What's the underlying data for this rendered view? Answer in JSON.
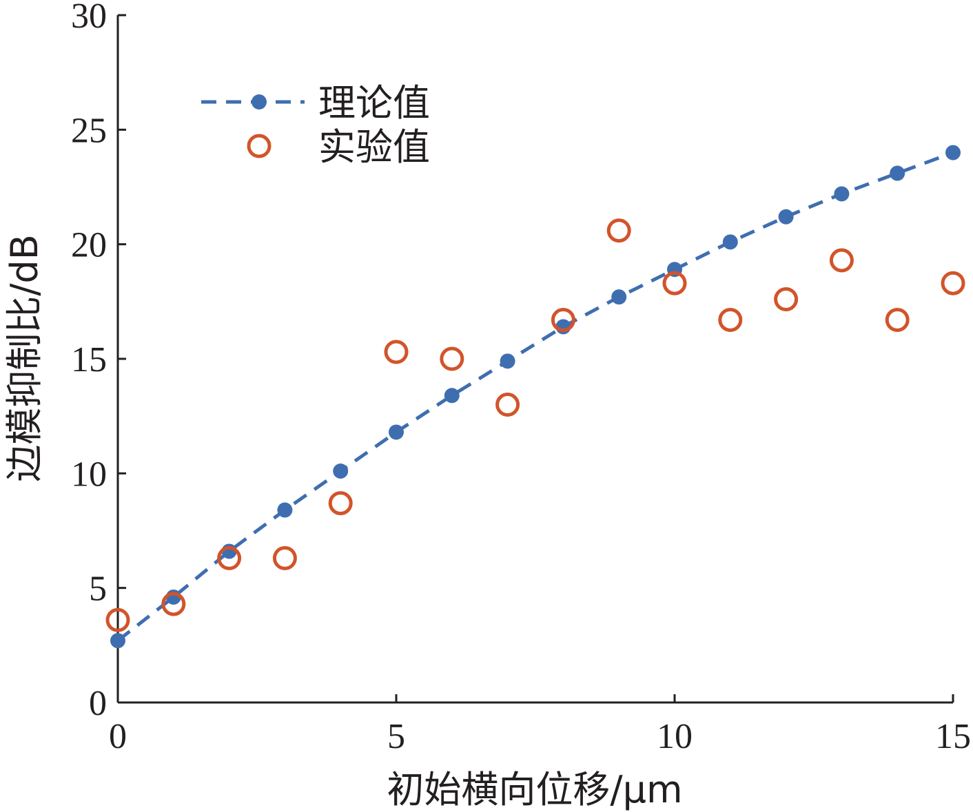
{
  "chart_data": {
    "type": "scatter",
    "title": "",
    "xlabel": "初始横向位移/μm",
    "ylabel": "边模抑制比/dB",
    "xlim": [
      0,
      15
    ],
    "ylim": [
      0,
      30
    ],
    "x_ticks": [
      0,
      5,
      10,
      15
    ],
    "y_ticks": [
      0,
      5,
      10,
      15,
      20,
      25,
      30
    ],
    "grid": false,
    "legend_position": "top-left",
    "series": [
      {
        "name": "理论值",
        "style": "dashed-line-with-filled-markers",
        "color": "#3f6eb0",
        "x": [
          0,
          1,
          2,
          3,
          4,
          5,
          6,
          7,
          8,
          9,
          10,
          11,
          12,
          13,
          14,
          15
        ],
        "y": [
          2.7,
          4.6,
          6.6,
          8.4,
          10.1,
          11.8,
          13.4,
          14.9,
          16.4,
          17.7,
          18.9,
          20.1,
          21.2,
          22.2,
          23.1,
          24.0
        ]
      },
      {
        "name": "实验值",
        "style": "hollow-circle-markers",
        "color": "#d2542a",
        "x": [
          0,
          1,
          2,
          3,
          4,
          5,
          6,
          7,
          8,
          9,
          10,
          11,
          12,
          13,
          14,
          15
        ],
        "y": [
          3.6,
          4.3,
          6.3,
          6.3,
          8.7,
          15.3,
          15.0,
          13.0,
          16.7,
          20.6,
          18.3,
          16.7,
          17.6,
          19.3,
          16.7,
          18.3
        ]
      }
    ]
  }
}
